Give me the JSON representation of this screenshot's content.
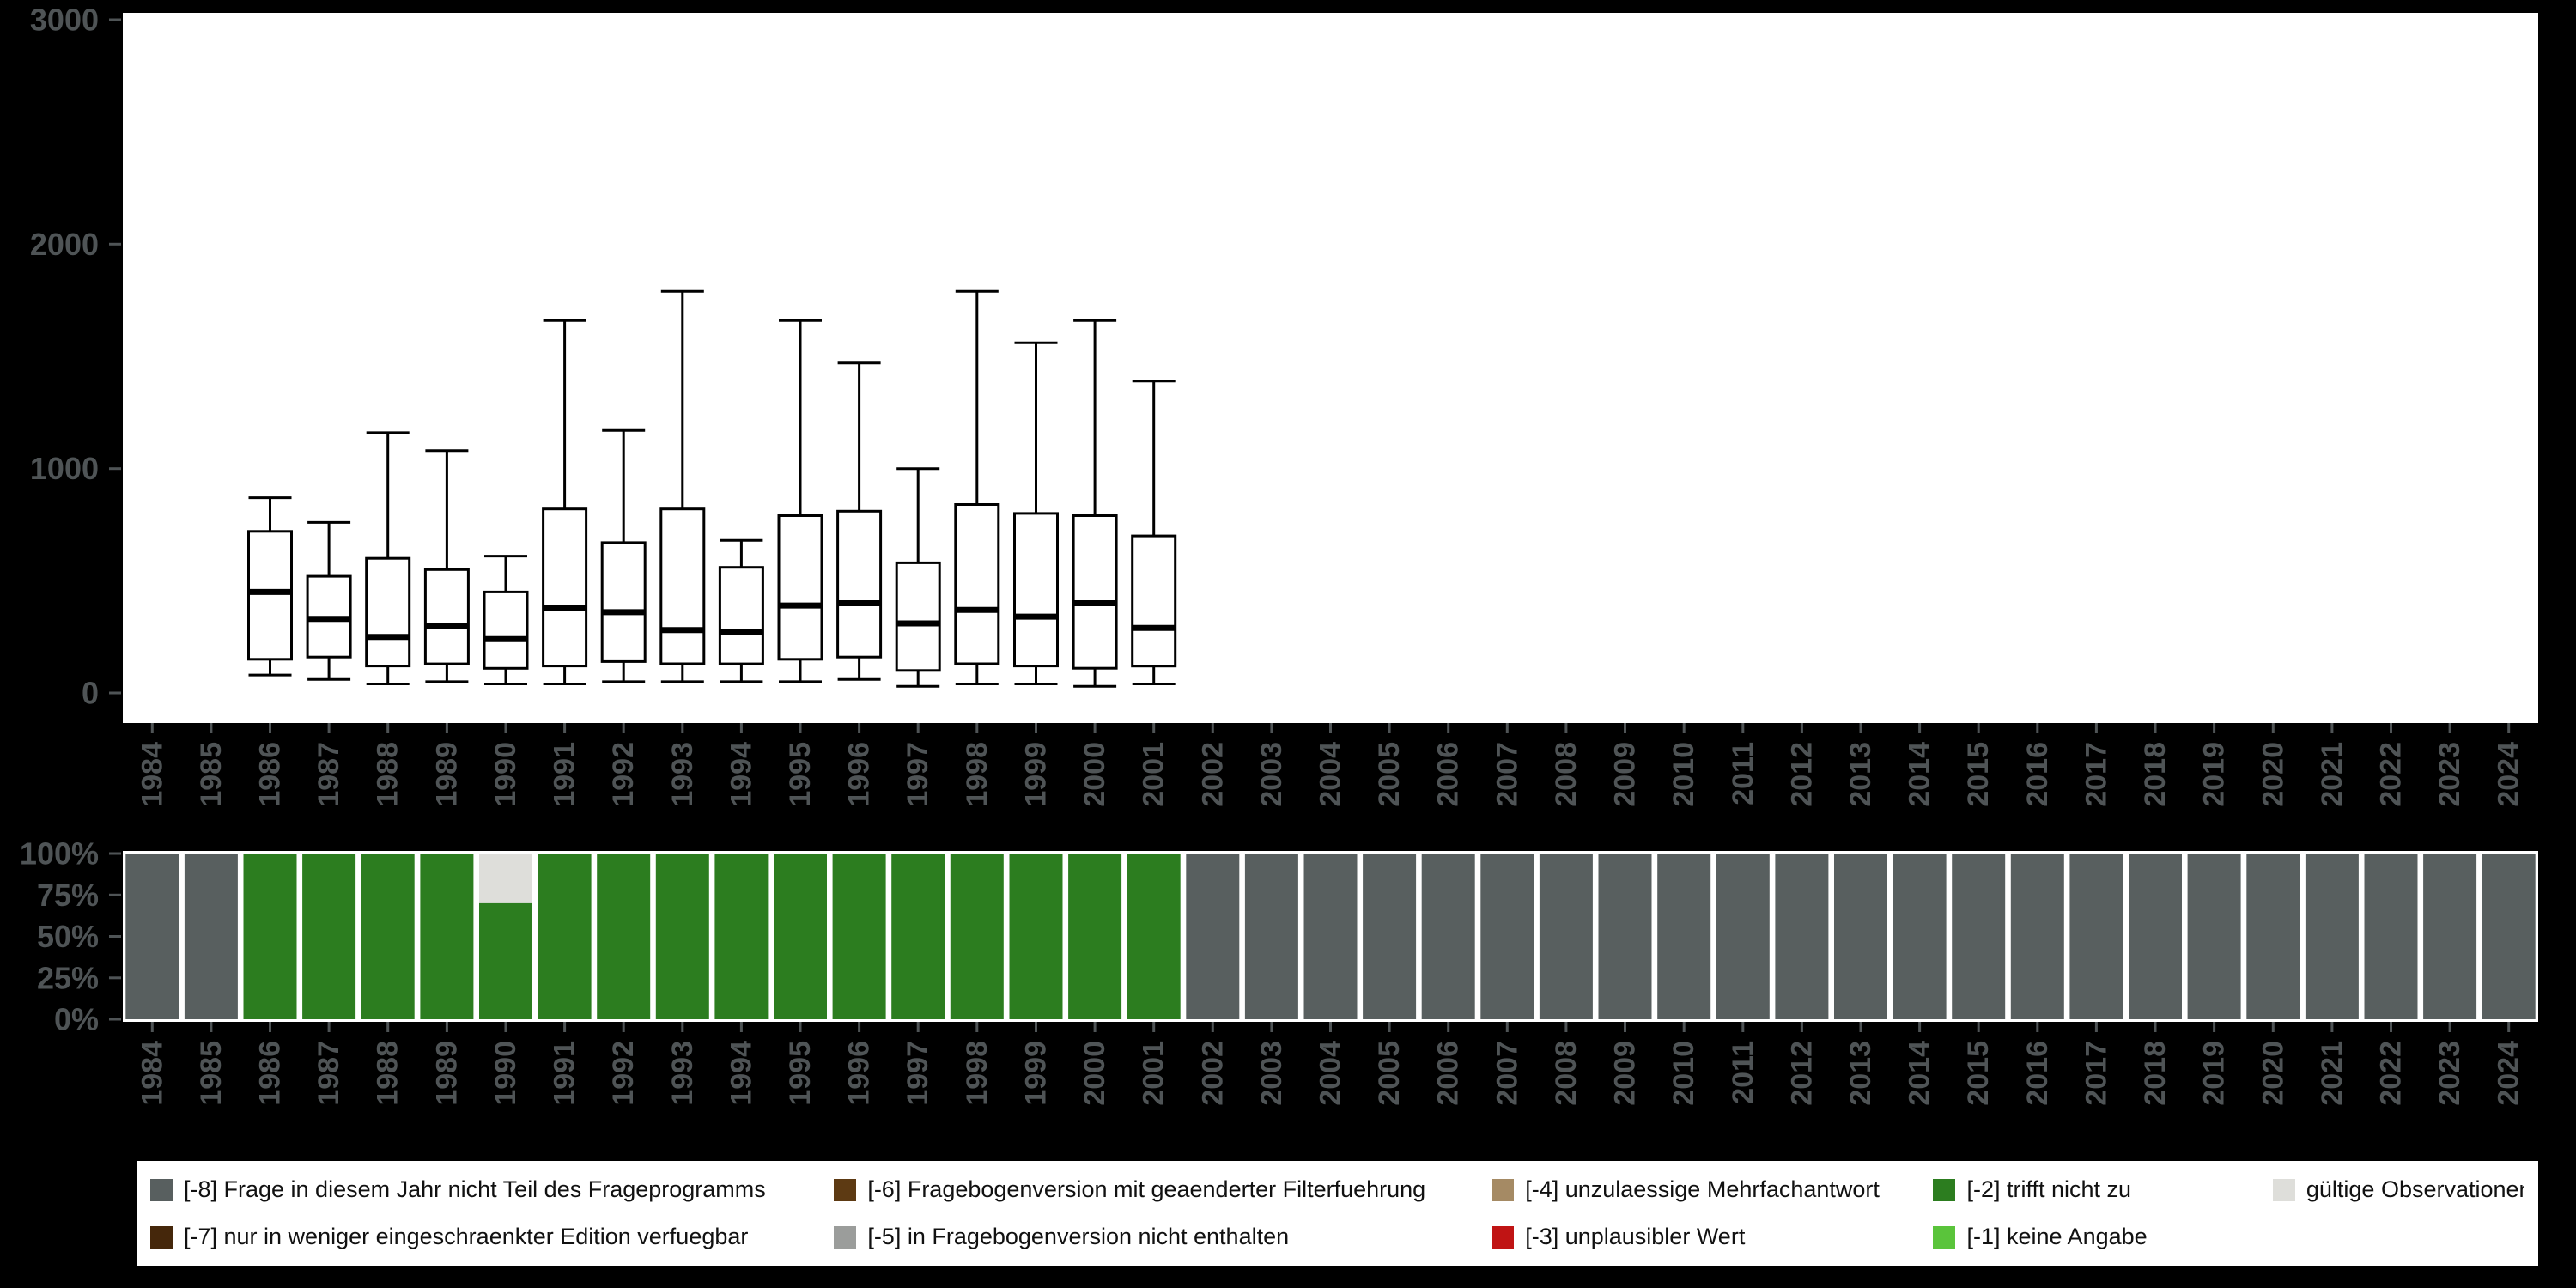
{
  "colors": {
    "background": "#000000",
    "plot_bg": "#ffffff",
    "axis_text": "#4f5456",
    "box_stroke": "#000000",
    "box_fill": "#ffffff",
    "legend_bg": "#ffffff",
    "legend_text": "#111111"
  },
  "chart_data": [
    {
      "type": "boxplot",
      "title": "",
      "xlabel": "",
      "ylabel": "",
      "ylim": [
        0,
        3000
      ],
      "yticks": [
        0,
        1000,
        2000,
        3000
      ],
      "grid": false,
      "years": [
        1984,
        1985,
        1986,
        1987,
        1988,
        1989,
        1990,
        1991,
        1992,
        1993,
        1994,
        1995,
        1996,
        1997,
        1998,
        1999,
        2000,
        2001,
        2002,
        2003,
        2004,
        2005,
        2006,
        2007,
        2008,
        2009,
        2010,
        2011,
        2012,
        2013,
        2014,
        2015,
        2016,
        2017,
        2018,
        2019,
        2020,
        2021,
        2022,
        2023,
        2024
      ],
      "boxes": [
        {
          "year": 1986,
          "low": 80,
          "q1": 150,
          "median": 450,
          "q3": 720,
          "high": 870
        },
        {
          "year": 1987,
          "low": 60,
          "q1": 160,
          "median": 330,
          "q3": 520,
          "high": 760
        },
        {
          "year": 1988,
          "low": 40,
          "q1": 120,
          "median": 250,
          "q3": 600,
          "high": 1160
        },
        {
          "year": 1989,
          "low": 50,
          "q1": 130,
          "median": 300,
          "q3": 550,
          "high": 1080
        },
        {
          "year": 1990,
          "low": 40,
          "q1": 110,
          "median": 240,
          "q3": 450,
          "high": 610
        },
        {
          "year": 1991,
          "low": 40,
          "q1": 120,
          "median": 380,
          "q3": 820,
          "high": 1660
        },
        {
          "year": 1992,
          "low": 50,
          "q1": 140,
          "median": 360,
          "q3": 670,
          "high": 1170
        },
        {
          "year": 1993,
          "low": 50,
          "q1": 130,
          "median": 280,
          "q3": 820,
          "high": 1790
        },
        {
          "year": 1994,
          "low": 50,
          "q1": 130,
          "median": 270,
          "q3": 560,
          "high": 680
        },
        {
          "year": 1995,
          "low": 50,
          "q1": 150,
          "median": 390,
          "q3": 790,
          "high": 1660
        },
        {
          "year": 1996,
          "low": 60,
          "q1": 160,
          "median": 400,
          "q3": 810,
          "high": 1470
        },
        {
          "year": 1997,
          "low": 30,
          "q1": 100,
          "median": 310,
          "q3": 580,
          "high": 1000
        },
        {
          "year": 1998,
          "low": 40,
          "q1": 130,
          "median": 370,
          "q3": 840,
          "high": 1790
        },
        {
          "year": 1999,
          "low": 40,
          "q1": 120,
          "median": 340,
          "q3": 800,
          "high": 1560
        },
        {
          "year": 2000,
          "low": 30,
          "q1": 110,
          "median": 400,
          "q3": 790,
          "high": 1660
        },
        {
          "year": 2001,
          "low": 40,
          "q1": 120,
          "median": 290,
          "q3": 700,
          "high": 1390
        }
      ]
    },
    {
      "type": "stacked_bar_percent",
      "title": "",
      "ytick_labels": [
        "100%",
        "75%",
        "50%",
        "25%",
        "0%"
      ],
      "ylim_percent": [
        0,
        100
      ],
      "years": [
        1984,
        1985,
        1986,
        1987,
        1988,
        1989,
        1990,
        1991,
        1992,
        1993,
        1994,
        1995,
        1996,
        1997,
        1998,
        1999,
        2000,
        2001,
        2002,
        2003,
        2004,
        2005,
        2006,
        2007,
        2008,
        2009,
        2010,
        2011,
        2012,
        2013,
        2014,
        2015,
        2016,
        2017,
        2018,
        2019,
        2020,
        2021,
        2022,
        2023,
        2024
      ],
      "bars": [
        {
          "year": 1984,
          "segments": [
            {
              "key": "m8",
              "pct": 100
            }
          ]
        },
        {
          "year": 1985,
          "segments": [
            {
              "key": "m8",
              "pct": 100
            }
          ]
        },
        {
          "year": 1986,
          "segments": [
            {
              "key": "m2",
              "pct": 100
            }
          ]
        },
        {
          "year": 1987,
          "segments": [
            {
              "key": "m2",
              "pct": 100
            }
          ]
        },
        {
          "year": 1988,
          "segments": [
            {
              "key": "m2",
              "pct": 100
            }
          ]
        },
        {
          "year": 1989,
          "segments": [
            {
              "key": "m2",
              "pct": 100
            }
          ]
        },
        {
          "year": 1990,
          "segments": [
            {
              "key": "valid",
              "pct": 30
            },
            {
              "key": "m2",
              "pct": 70
            }
          ]
        },
        {
          "year": 1991,
          "segments": [
            {
              "key": "m2",
              "pct": 100
            }
          ]
        },
        {
          "year": 1992,
          "segments": [
            {
              "key": "m2",
              "pct": 100
            }
          ]
        },
        {
          "year": 1993,
          "segments": [
            {
              "key": "m2",
              "pct": 100
            }
          ]
        },
        {
          "year": 1994,
          "segments": [
            {
              "key": "m2",
              "pct": 100
            }
          ]
        },
        {
          "year": 1995,
          "segments": [
            {
              "key": "m2",
              "pct": 100
            }
          ]
        },
        {
          "year": 1996,
          "segments": [
            {
              "key": "m2",
              "pct": 100
            }
          ]
        },
        {
          "year": 1997,
          "segments": [
            {
              "key": "m2",
              "pct": 100
            }
          ]
        },
        {
          "year": 1998,
          "segments": [
            {
              "key": "m2",
              "pct": 100
            }
          ]
        },
        {
          "year": 1999,
          "segments": [
            {
              "key": "m2",
              "pct": 100
            }
          ]
        },
        {
          "year": 2000,
          "segments": [
            {
              "key": "m2",
              "pct": 100
            }
          ]
        },
        {
          "year": 2001,
          "segments": [
            {
              "key": "m2",
              "pct": 100
            }
          ]
        },
        {
          "year": 2002,
          "segments": [
            {
              "key": "m8",
              "pct": 100
            }
          ]
        },
        {
          "year": 2003,
          "segments": [
            {
              "key": "m8",
              "pct": 100
            }
          ]
        },
        {
          "year": 2004,
          "segments": [
            {
              "key": "m8",
              "pct": 100
            }
          ]
        },
        {
          "year": 2005,
          "segments": [
            {
              "key": "m8",
              "pct": 100
            }
          ]
        },
        {
          "year": 2006,
          "segments": [
            {
              "key": "m8",
              "pct": 100
            }
          ]
        },
        {
          "year": 2007,
          "segments": [
            {
              "key": "m8",
              "pct": 100
            }
          ]
        },
        {
          "year": 2008,
          "segments": [
            {
              "key": "m8",
              "pct": 100
            }
          ]
        },
        {
          "year": 2009,
          "segments": [
            {
              "key": "m8",
              "pct": 100
            }
          ]
        },
        {
          "year": 2010,
          "segments": [
            {
              "key": "m8",
              "pct": 100
            }
          ]
        },
        {
          "year": 2011,
          "segments": [
            {
              "key": "m8",
              "pct": 100
            }
          ]
        },
        {
          "year": 2012,
          "segments": [
            {
              "key": "m8",
              "pct": 100
            }
          ]
        },
        {
          "year": 2013,
          "segments": [
            {
              "key": "m8",
              "pct": 100
            }
          ]
        },
        {
          "year": 2014,
          "segments": [
            {
              "key": "m8",
              "pct": 100
            }
          ]
        },
        {
          "year": 2015,
          "segments": [
            {
              "key": "m8",
              "pct": 100
            }
          ]
        },
        {
          "year": 2016,
          "segments": [
            {
              "key": "m8",
              "pct": 100
            }
          ]
        },
        {
          "year": 2017,
          "segments": [
            {
              "key": "m8",
              "pct": 100
            }
          ]
        },
        {
          "year": 2018,
          "segments": [
            {
              "key": "m8",
              "pct": 100
            }
          ]
        },
        {
          "year": 2019,
          "segments": [
            {
              "key": "m8",
              "pct": 100
            }
          ]
        },
        {
          "year": 2020,
          "segments": [
            {
              "key": "m8",
              "pct": 100
            }
          ]
        },
        {
          "year": 2021,
          "segments": [
            {
              "key": "m8",
              "pct": 100
            }
          ]
        },
        {
          "year": 2022,
          "segments": [
            {
              "key": "m8",
              "pct": 100
            }
          ]
        },
        {
          "year": 2023,
          "segments": [
            {
              "key": "m8",
              "pct": 100
            }
          ]
        },
        {
          "year": 2024,
          "segments": [
            {
              "key": "m8",
              "pct": 100
            }
          ]
        }
      ]
    }
  ],
  "legend": {
    "items": [
      {
        "key": "m8",
        "label": "[-8] Frage in diesem Jahr nicht Teil des Frageprogramms",
        "color": "#585f5f"
      },
      {
        "key": "m7",
        "label": "[-7] nur in weniger eingeschraenkter Edition verfuegbar",
        "color": "#45270b"
      },
      {
        "key": "m6",
        "label": "[-6] Fragebogenversion mit geaenderter Filterfuehrung",
        "color": "#5d3a13"
      },
      {
        "key": "m5",
        "label": "[-5] in Fragebogenversion nicht enthalten",
        "color": "#9b9d9b"
      },
      {
        "key": "m4",
        "label": "[-4] unzulaessige Mehrfachantwort",
        "color": "#a58a64"
      },
      {
        "key": "m3",
        "label": "[-3] unplausibler Wert",
        "color": "#c01414"
      },
      {
        "key": "m2",
        "label": "[-2] trifft nicht zu",
        "color": "#2c7d1f"
      },
      {
        "key": "m1",
        "label": "[-1] keine Angabe",
        "color": "#5ac43b"
      },
      {
        "key": "valid",
        "label": "gültige Observationen",
        "color": "#dededa"
      }
    ]
  }
}
